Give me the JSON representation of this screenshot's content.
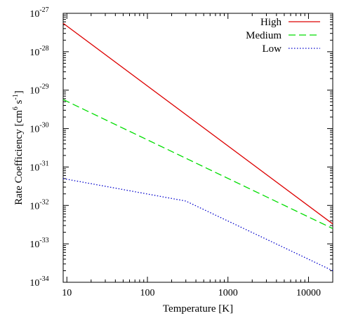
{
  "chart_data": {
    "type": "line",
    "xscale": "log",
    "yscale": "log",
    "xlim": [
      9,
      20000
    ],
    "ylim": [
      1e-34,
      1e-27
    ],
    "xlabel": "Temperature [K]",
    "ylabel": {
      "prefix": "Rate Coefficiency [cm",
      "sup1": "6",
      "mid": " s",
      "sup2": "-1",
      "suffix": "]"
    },
    "x_ticks": [
      {
        "value": 10,
        "label": "10"
      },
      {
        "value": 100,
        "label": "100"
      },
      {
        "value": 1000,
        "label": "1000"
      },
      {
        "value": 10000,
        "label": "10000"
      }
    ],
    "y_ticks": [
      {
        "value": 1e-27,
        "base": "10",
        "exp": "-27"
      },
      {
        "value": 1e-28,
        "base": "10",
        "exp": "-28"
      },
      {
        "value": 1e-29,
        "base": "10",
        "exp": "-29"
      },
      {
        "value": 1e-30,
        "base": "10",
        "exp": "-30"
      },
      {
        "value": 1e-31,
        "base": "10",
        "exp": "-31"
      },
      {
        "value": 1e-32,
        "base": "10",
        "exp": "-32"
      },
      {
        "value": 1e-33,
        "base": "10",
        "exp": "-33"
      },
      {
        "value": 1e-34,
        "base": "10",
        "exp": "-34"
      }
    ],
    "grid": false,
    "legend_position": "top-right",
    "series": [
      {
        "name": "High",
        "color": "#dd0000",
        "dash": "solid",
        "x": [
          9,
          20000
        ],
        "y": [
          5.5e-28,
          3.3e-33
        ]
      },
      {
        "name": "Medium",
        "color": "#00dd00",
        "dash": "dashed",
        "x": [
          9,
          20000
        ],
        "y": [
          5.7e-30,
          2.5e-33
        ]
      },
      {
        "name": "Low",
        "color": "#0000cc",
        "dash": "dotted",
        "x": [
          9,
          300,
          20000
        ],
        "y": [
          5e-32,
          1.3e-32,
          2e-34
        ]
      }
    ]
  }
}
